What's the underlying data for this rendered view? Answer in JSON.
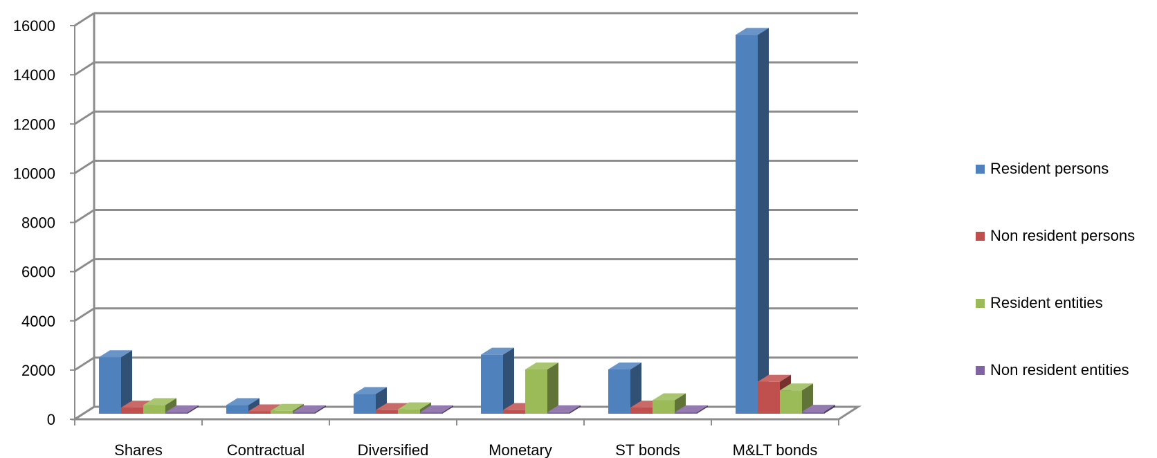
{
  "chart_data": {
    "type": "bar",
    "title": "",
    "xlabel": "",
    "ylabel": "",
    "ylim": [
      0,
      16000
    ],
    "yticks": [
      0,
      2000,
      4000,
      6000,
      8000,
      10000,
      12000,
      14000,
      16000
    ],
    "ytick_labels": [
      "0",
      "2000",
      "4000",
      "6000",
      "8000",
      "10000",
      "12000",
      "14000",
      "16000"
    ],
    "grid": true,
    "legend_position": "right",
    "categories": [
      "Shares",
      "Contractual",
      "Diversified",
      "Monetary",
      "ST bonds",
      "M&LT bonds"
    ],
    "series": [
      {
        "name": "Resident persons",
        "color": "#4F81BD",
        "values": [
          2300,
          350,
          800,
          2400,
          1800,
          15400
        ]
      },
      {
        "name": "Non resident  persons",
        "color": "#C0504D",
        "values": [
          250,
          100,
          150,
          150,
          250,
          1300
        ]
      },
      {
        "name": "Resident entities",
        "color": "#9BBB59",
        "values": [
          350,
          120,
          180,
          1800,
          550,
          950
        ]
      },
      {
        "name": "Non resident entities",
        "color": "#8064A2",
        "values": [
          50,
          20,
          30,
          60,
          50,
          80
        ]
      }
    ]
  }
}
